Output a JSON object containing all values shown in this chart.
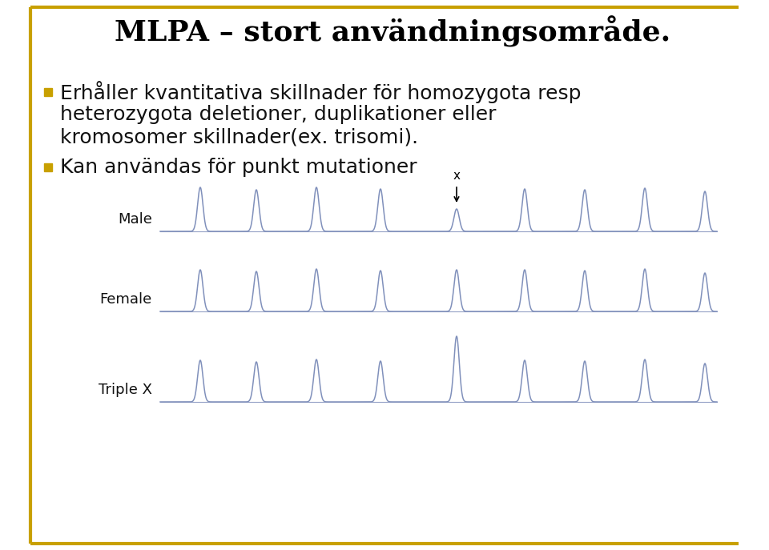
{
  "title": "MLPA – stort användningsområde.",
  "bullet1_line1": "Erhåller kvantitativa skillnader för homozygota resp",
  "bullet1_line2": "heterozygota deletioner, duplikationer eller",
  "bullet1_line3": "kromosomer skillnader(ex. trisomi).",
  "bullet2": "Kan användas för punkt mutationer",
  "bullet_color": "#C8A000",
  "title_color": "#000000",
  "text_color": "#111111",
  "bg_color": "#FFFFFF",
  "border_color": "#C8A000",
  "peak_color": "#8090bb",
  "label_male": "Male",
  "label_female": "Female",
  "label_triplex": "Triple X",
  "arrow_label": "x",
  "title_fontsize": 26,
  "text_fontsize": 18,
  "label_fontsize": 13
}
